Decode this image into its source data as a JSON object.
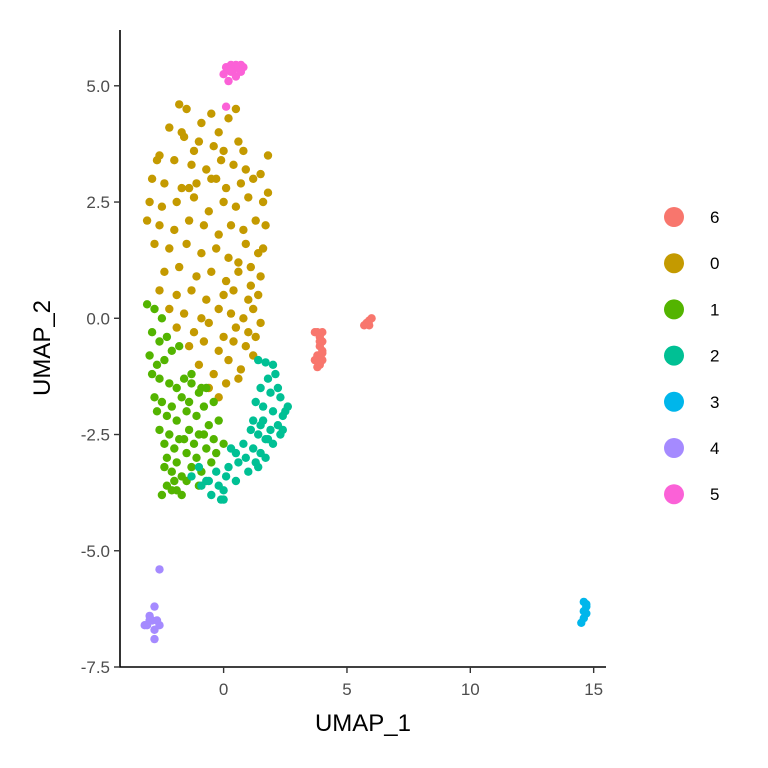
{
  "chart_data": {
    "type": "scatter",
    "title": "",
    "xlabel": "UMAP_1",
    "ylabel": "UMAP_2",
    "xlim": [
      -4.2,
      15.5
    ],
    "ylim": [
      -7.5,
      6.2
    ],
    "xticks": [
      0,
      5,
      10,
      15
    ],
    "xtick_labels": [
      "0",
      "5",
      "10",
      "15"
    ],
    "yticks": [
      -7.5,
      -5.0,
      -2.5,
      0.0,
      2.5,
      5.0
    ],
    "ytick_labels": [
      "-7.5",
      "-5.0",
      "-2.5",
      "0.0",
      "2.5",
      "5.0"
    ],
    "grid": false,
    "legend_position": "right",
    "legend": [
      {
        "name": "6",
        "color": "#F8766D"
      },
      {
        "name": "0",
        "color": "#C49A00"
      },
      {
        "name": "1",
        "color": "#53B400"
      },
      {
        "name": "2",
        "color": "#00C094"
      },
      {
        "name": "3",
        "color": "#00B6EB"
      },
      {
        "name": "4",
        "color": "#A58AFF"
      },
      {
        "name": "5",
        "color": "#FB61D7"
      }
    ],
    "series": [
      {
        "name": "6",
        "color": "#F8766D",
        "x": [
          3.7,
          3.8,
          3.9,
          4.0,
          4.0,
          3.9,
          3.8,
          3.9,
          4.0,
          3.9,
          3.8,
          3.7,
          3.9,
          4.0,
          3.8,
          3.9,
          4.0,
          3.9,
          5.7,
          5.8,
          5.9,
          6.0,
          5.9
        ],
        "y": [
          -0.3,
          -0.3,
          -0.35,
          -0.5,
          -0.7,
          -0.8,
          -0.9,
          -1.0,
          -0.9,
          -0.6,
          -0.8,
          -0.9,
          -0.4,
          -0.3,
          -1.05,
          -0.5,
          -0.75,
          -0.95,
          -0.15,
          -0.1,
          -0.05,
          0.0,
          -0.15
        ]
      },
      {
        "name": "0",
        "color": "#C49A00",
        "x": [
          -1.8,
          -1.5,
          -0.9,
          -0.5,
          -0.2,
          0.2,
          0.5,
          -2.2,
          -1.6,
          -1.0,
          -0.4,
          0.0,
          0.6,
          -2.6,
          -2.0,
          -1.3,
          -0.7,
          -0.1,
          0.4,
          0.9,
          -2.9,
          -2.4,
          -1.7,
          -1.1,
          -0.5,
          0.1,
          0.7,
          1.2,
          1.5,
          -3.0,
          -2.5,
          -1.9,
          -1.2,
          -0.6,
          0.0,
          0.5,
          1.0,
          1.6,
          1.8,
          -3.1,
          -2.6,
          -2.0,
          -1.4,
          -0.8,
          -0.2,
          0.3,
          0.8,
          1.3,
          1.7,
          -2.8,
          -2.2,
          -1.5,
          -0.9,
          -0.3,
          0.2,
          0.9,
          1.4,
          1.6,
          -2.4,
          -1.8,
          -1.1,
          -0.5,
          0.1,
          0.6,
          1.1,
          1.5,
          -2.6,
          -1.9,
          -1.3,
          -0.7,
          0.0,
          0.4,
          1.0,
          1.4,
          -2.2,
          -1.6,
          -0.9,
          -0.2,
          0.3,
          0.8,
          1.2,
          -1.9,
          -1.2,
          -0.6,
          0.0,
          0.5,
          1.0,
          1.5,
          -1.4,
          -0.8,
          -0.2,
          0.4,
          0.9,
          1.3,
          -1.0,
          -0.4,
          0.2,
          0.7,
          1.2,
          -0.6,
          0.1,
          0.6,
          -0.2,
          -1.7,
          -1.2,
          -0.3,
          0.8,
          1.8,
          -2.7,
          -1.4,
          0.6,
          1.1
        ],
        "y": [
          4.6,
          4.5,
          4.2,
          4.4,
          4.0,
          4.3,
          4.5,
          4.1,
          3.9,
          3.8,
          3.7,
          3.6,
          3.8,
          3.5,
          3.4,
          3.3,
          3.2,
          3.4,
          3.3,
          3.2,
          3.0,
          2.9,
          2.8,
          2.9,
          3.0,
          2.8,
          2.9,
          3.0,
          3.1,
          2.5,
          2.4,
          2.5,
          2.6,
          2.3,
          2.5,
          2.4,
          2.6,
          2.5,
          2.7,
          2.1,
          2.0,
          1.9,
          2.1,
          2.0,
          1.8,
          2.0,
          1.9,
          2.1,
          2.0,
          1.6,
          1.5,
          1.6,
          1.4,
          1.5,
          1.3,
          1.6,
          1.4,
          1.5,
          1.0,
          1.1,
          0.9,
          1.0,
          0.8,
          1.0,
          1.1,
          0.9,
          0.6,
          0.5,
          0.6,
          0.4,
          0.5,
          0.6,
          0.4,
          0.5,
          0.2,
          0.1,
          0.0,
          0.2,
          0.1,
          0.0,
          0.2,
          -0.2,
          -0.3,
          -0.1,
          -0.4,
          -0.2,
          -0.3,
          -0.1,
          -0.6,
          -0.5,
          -0.7,
          -0.5,
          -0.6,
          -0.4,
          -1.0,
          -1.2,
          -0.9,
          -1.1,
          -0.8,
          -1.5,
          -1.4,
          -1.3,
          -1.7,
          4.0,
          3.6,
          3.0,
          3.6,
          3.5,
          3.4,
          2.8,
          1.2,
          0.7
        ]
      },
      {
        "name": "1",
        "color": "#53B400",
        "x": [
          -3.1,
          -2.8,
          -2.5,
          -2.9,
          -2.6,
          -2.3,
          -3.0,
          -2.7,
          -2.4,
          -2.1,
          -1.8,
          -2.9,
          -2.6,
          -2.2,
          -1.9,
          -1.6,
          -1.3,
          -2.8,
          -2.5,
          -2.1,
          -1.7,
          -1.4,
          -1.0,
          -0.7,
          -2.7,
          -2.3,
          -1.9,
          -1.5,
          -1.1,
          -0.8,
          -0.4,
          -2.6,
          -2.2,
          -1.8,
          -1.4,
          -1.0,
          -0.6,
          -0.2,
          -2.4,
          -2.0,
          -1.6,
          -1.2,
          -0.8,
          -0.4,
          0.0,
          -2.3,
          -1.9,
          -1.5,
          -1.1,
          -0.7,
          -0.3,
          -2.1,
          -1.7,
          -1.3,
          -0.9,
          -0.5,
          -2.3,
          -1.9,
          -1.5,
          -1.0,
          -2.5,
          -2.1,
          -1.7,
          -2.0,
          -2.4,
          -1.3,
          -0.9
        ],
        "y": [
          0.3,
          0.2,
          0.0,
          -0.3,
          -0.5,
          -0.4,
          -0.8,
          -1.0,
          -0.9,
          -0.7,
          -0.6,
          -1.2,
          -1.3,
          -1.4,
          -1.5,
          -1.3,
          -1.4,
          -1.7,
          -1.8,
          -1.9,
          -1.7,
          -1.8,
          -1.6,
          -1.5,
          -2.0,
          -2.1,
          -2.2,
          -2.0,
          -2.1,
          -1.9,
          -1.8,
          -2.4,
          -2.5,
          -2.6,
          -2.4,
          -2.5,
          -2.3,
          -2.2,
          -2.7,
          -2.8,
          -2.6,
          -2.7,
          -2.5,
          -2.6,
          -2.7,
          -3.0,
          -3.1,
          -2.9,
          -3.0,
          -2.8,
          -2.9,
          -3.3,
          -3.4,
          -3.2,
          -3.3,
          -3.1,
          -3.6,
          -3.7,
          -3.5,
          -3.6,
          -3.8,
          -3.7,
          -3.8,
          -3.5,
          -3.2,
          -1.2,
          -1.5
        ]
      },
      {
        "name": "2",
        "color": "#00C094",
        "x": [
          1.4,
          1.7,
          2.0,
          2.1,
          1.8,
          2.2,
          1.5,
          1.9,
          2.3,
          2.6,
          1.3,
          1.6,
          2.0,
          2.4,
          2.2,
          1.2,
          1.5,
          1.9,
          2.3,
          1.7,
          1.1,
          1.4,
          1.8,
          2.0,
          2.4,
          0.8,
          1.2,
          1.5,
          0.5,
          0.9,
          1.3,
          1.7,
          0.2,
          0.6,
          1.0,
          1.4,
          -0.3,
          0.1,
          0.5,
          -0.6,
          -0.2,
          0.0,
          -0.9,
          -0.5,
          -0.1,
          -1.3,
          -0.7,
          0.0,
          0.3,
          1.6,
          2.5,
          -1.0
        ],
        "y": [
          -0.9,
          -0.95,
          -1.0,
          -1.2,
          -1.3,
          -1.5,
          -1.5,
          -1.6,
          -1.7,
          -1.9,
          -1.8,
          -1.9,
          -2.0,
          -2.1,
          -2.3,
          -2.2,
          -2.3,
          -2.4,
          -2.5,
          -2.6,
          -2.4,
          -2.5,
          -2.6,
          -2.7,
          -2.4,
          -2.7,
          -2.8,
          -2.9,
          -2.9,
          -3.0,
          -3.1,
          -3.0,
          -3.2,
          -3.1,
          -3.3,
          -3.2,
          -3.3,
          -3.4,
          -3.5,
          -3.5,
          -3.6,
          -3.7,
          -3.6,
          -3.8,
          -3.9,
          -3.4,
          -3.5,
          -3.9,
          -2.8,
          -2.2,
          -2.0,
          -3.2
        ]
      },
      {
        "name": "3",
        "color": "#00B6EB",
        "x": [
          14.6,
          14.7,
          14.6,
          14.7,
          14.6,
          14.5,
          14.7
        ],
        "y": [
          -6.1,
          -6.2,
          -6.3,
          -6.35,
          -6.45,
          -6.55,
          -6.15
        ]
      },
      {
        "name": "4",
        "color": "#A58AFF",
        "x": [
          -2.6,
          -2.8,
          -3.0,
          -2.9,
          -2.7,
          -3.1,
          -2.6,
          -2.8,
          -3.2,
          -3.0,
          -2.8
        ],
        "y": [
          -5.4,
          -6.2,
          -6.4,
          -6.5,
          -6.5,
          -6.6,
          -6.6,
          -6.7,
          -6.6,
          -6.5,
          -6.9
        ]
      },
      {
        "name": "5",
        "color": "#FB61D7",
        "x": [
          0.1,
          0.3,
          0.5,
          0.7,
          0.2,
          0.4,
          0.6,
          0.8,
          0.0,
          0.3,
          0.5,
          0.7,
          0.2,
          0.1
        ],
        "y": [
          5.4,
          5.45,
          5.45,
          5.45,
          5.35,
          5.35,
          5.4,
          5.4,
          5.25,
          5.3,
          5.2,
          5.3,
          5.1,
          4.55
        ]
      }
    ]
  }
}
